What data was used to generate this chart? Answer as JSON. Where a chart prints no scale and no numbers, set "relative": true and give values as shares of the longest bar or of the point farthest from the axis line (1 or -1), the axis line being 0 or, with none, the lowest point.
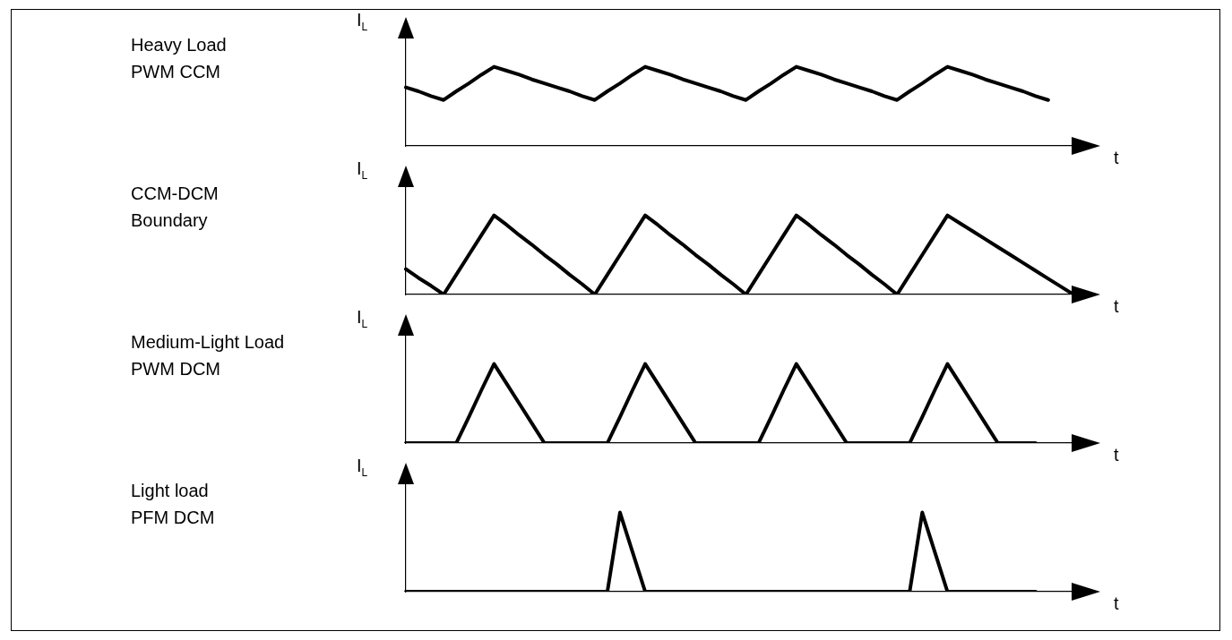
{
  "chart_data": [
    {
      "type": "line",
      "annotations": [
        "Heavy Load\nPWM CCM"
      ],
      "xlabel": "t",
      "ylabel": "I$_{L}$",
      "relative": true,
      "marker": "none",
      "categories": [
        null,
        null,
        null,
        null,
        null,
        null,
        null,
        null,
        null,
        null,
        null,
        null,
        null,
        null,
        null,
        null,
        null,
        null,
        null,
        null,
        null,
        null,
        null,
        null,
        null,
        null,
        null,
        null,
        null,
        null,
        null,
        null,
        null,
        null,
        null,
        null,
        null,
        null,
        null,
        null,
        null,
        null,
        null,
        null,
        null,
        null,
        null,
        null,
        null,
        null,
        null,
        null,
        null,
        null
      ],
      "series": [
        {
          "color": "#000000",
          "values": [
            0.74,
            0.69,
            0.63,
            0.58,
            0.69,
            0.79,
            0.9,
            1,
            0.95,
            0.9,
            0.84,
            0.79,
            0.74,
            0.69,
            0.63,
            0.58,
            0.69,
            0.79,
            0.9,
            1,
            0.95,
            0.9,
            0.84,
            0.79,
            0.74,
            0.69,
            0.63,
            0.58,
            0.69,
            0.79,
            0.9,
            1,
            0.95,
            0.9,
            0.84,
            0.79,
            0.74,
            0.69,
            0.63,
            0.58,
            0.69,
            0.79,
            0.9,
            1,
            0.95,
            0.9,
            0.84,
            0.79,
            0.74,
            0.69,
            0.63,
            0.58,
            null,
            null
          ]
        }
      ]
    },
    {
      "type": "line",
      "annotations": [
        "CCM-DCM\nBoundary"
      ],
      "xlabel": "t",
      "ylabel": "I$_{L}$",
      "relative": true,
      "marker": "none",
      "categories": [
        null,
        null,
        null,
        null,
        null,
        null,
        null,
        null,
        null,
        null,
        null,
        null,
        null,
        null,
        null,
        null,
        null,
        null,
        null,
        null,
        null,
        null,
        null,
        null,
        null,
        null,
        null,
        null,
        null,
        null,
        null,
        null,
        null,
        null,
        null,
        null,
        null,
        null,
        null,
        null,
        null,
        null,
        null,
        null,
        null,
        null,
        null,
        null,
        null,
        null,
        null,
        null,
        null,
        null
      ],
      "series": [
        {
          "color": "#000000",
          "values": [
            0.32,
            0.21,
            0.11,
            0,
            0.25,
            0.5,
            0.75,
            1,
            0.88,
            0.75,
            0.63,
            0.5,
            0.38,
            0.25,
            0.13,
            0,
            0.25,
            0.5,
            0.75,
            1,
            0.88,
            0.75,
            0.63,
            0.5,
            0.38,
            0.25,
            0.13,
            0,
            0.25,
            0.5,
            0.75,
            1,
            0.88,
            0.75,
            0.63,
            0.5,
            0.38,
            0.25,
            0.13,
            0,
            0.25,
            0.5,
            0.75,
            1,
            0.9,
            0.8,
            0.7,
            0.6,
            0.5,
            0.4,
            0.3,
            0.2,
            0.1,
            0
          ]
        }
      ]
    },
    {
      "type": "line",
      "annotations": [
        "Medium-Light Load\nPWM DCM"
      ],
      "xlabel": "t",
      "ylabel": "I$_{L}$",
      "relative": true,
      "marker": "none",
      "categories": [
        null,
        null,
        null,
        null,
        null,
        null,
        null,
        null,
        null,
        null,
        null,
        null,
        null,
        null,
        null,
        null,
        null,
        null,
        null,
        null,
        null,
        null,
        null,
        null,
        null,
        null,
        null,
        null,
        null,
        null,
        null,
        null,
        null,
        null,
        null,
        null,
        null,
        null,
        null,
        null,
        null,
        null,
        null,
        null,
        null,
        null,
        null,
        null,
        null,
        null,
        null,
        null,
        null,
        null
      ],
      "series": [
        {
          "color": "#000000",
          "values": [
            0,
            0,
            0,
            0,
            0,
            0.33,
            0.67,
            1,
            0.75,
            0.5,
            0.25,
            0,
            0,
            0,
            0,
            0,
            0,
            0.33,
            0.67,
            1,
            0.75,
            0.5,
            0.25,
            0,
            0,
            0,
            0,
            0,
            0,
            0.33,
            0.67,
            1,
            0.75,
            0.5,
            0.25,
            0,
            0,
            0,
            0,
            0,
            0,
            0.33,
            0.67,
            1,
            0.75,
            0.5,
            0.25,
            0,
            0,
            0,
            0,
            null,
            null,
            null
          ]
        }
      ]
    },
    {
      "type": "line",
      "annotations": [
        "Light load\nPFM DCM"
      ],
      "xlabel": "t",
      "ylabel": "I$_{L}$",
      "relative": true,
      "marker": "none",
      "categories": [
        null,
        null,
        null,
        null,
        null,
        null,
        null,
        null,
        null,
        null,
        null,
        null,
        null,
        null,
        null,
        null,
        null,
        null,
        null,
        null,
        null,
        null,
        null,
        null,
        null,
        null,
        null,
        null,
        null,
        null,
        null,
        null,
        null,
        null,
        null,
        null,
        null,
        null,
        null,
        null,
        null,
        null,
        null,
        null,
        null,
        null,
        null,
        null,
        null,
        null,
        null,
        null,
        null,
        null
      ],
      "series": [
        {
          "color": "#000000",
          "values": [
            0,
            0,
            0,
            0,
            0,
            0,
            0,
            0,
            0,
            0,
            0,
            0,
            0,
            0,
            0,
            0,
            0,
            1,
            0.5,
            0,
            0,
            0,
            0,
            0,
            0,
            0,
            0,
            0,
            0,
            0,
            0,
            0,
            0,
            0,
            0,
            0,
            0,
            0,
            0,
            0,
            0,
            1,
            0.5,
            0,
            0,
            0,
            0,
            0,
            0,
            0,
            0,
            null,
            null,
            null
          ]
        }
      ]
    }
  ]
}
